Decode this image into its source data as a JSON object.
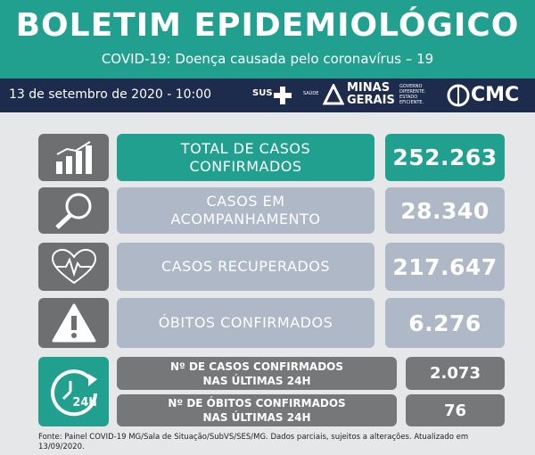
{
  "header": {
    "title": "BOLETIM EPIDEMIOLÓGICO",
    "subtitle": "COVID-19: Doença causada pelo coronavírus – 19",
    "date": "13 de setembro de 2020 - 10:00",
    "logos": {
      "sus": "SUS",
      "saude": "SAÚDE",
      "minas_gerais": [
        "MINAS",
        "GERAIS"
      ],
      "slogan": [
        "GOVERNO",
        "DIFERENTE.",
        "ESTADO",
        "EFICIENTE."
      ],
      "cmc": "CMC"
    }
  },
  "indicators": [
    {
      "label": [
        "TOTAL DE CASOS",
        "CONFIRMADOS"
      ],
      "value": "252.263"
    },
    {
      "label": [
        "CASOS EM",
        "ACOMPANHAMENTO"
      ],
      "value": "28.340"
    },
    {
      "label": [
        "CASOS RECUPERADOS"
      ],
      "value": "217.647"
    },
    {
      "label": [
        "ÓBITOS CONFIRMADOS"
      ],
      "value": "6.276"
    }
  ],
  "last_24h": {
    "icon_label": "24h",
    "rows": [
      {
        "label": [
          "Nº DE CASOS  CONFIRMADOS",
          "NAS ÚLTIMAS 24H"
        ],
        "value": "2.073"
      },
      {
        "label": [
          "Nº DE ÓBITOS  CONFIRMADOS",
          "NAS ÚLTIMAS 24H"
        ],
        "value": "76"
      }
    ]
  },
  "footer": "Fonte: Painel COVID-19 MG/Sala de Situação/SubVS/SES/MG. Dados parciais, sujeitos a alterações. Atualizado em 13/09/2020."
}
